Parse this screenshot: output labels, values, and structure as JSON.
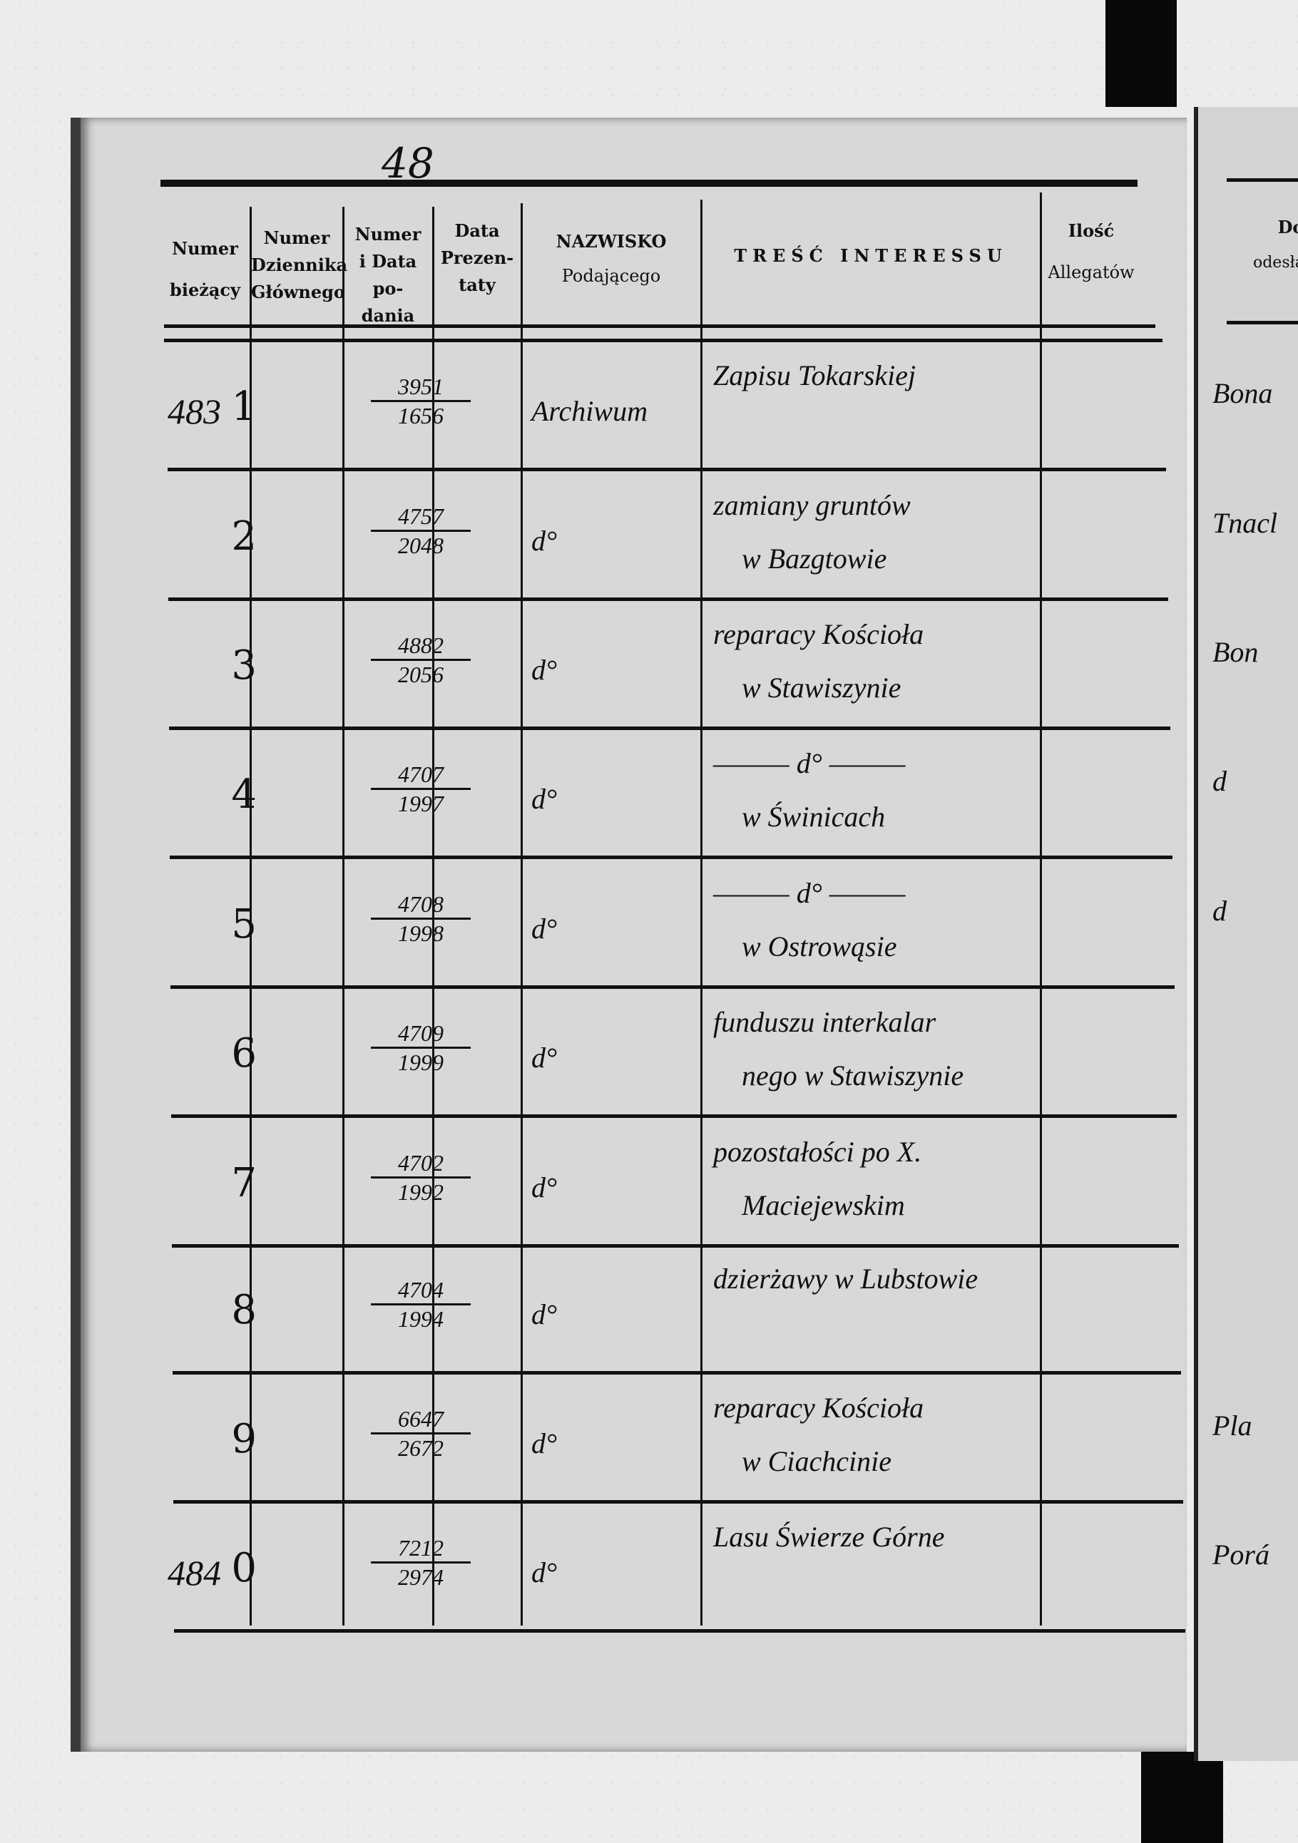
{
  "page_number": "48",
  "headers": {
    "numer_biezacy": [
      "Numer",
      "bieżący"
    ],
    "numer_dziennika": [
      "Numer",
      "Dziennika",
      "Głównego"
    ],
    "numer_data_podania": [
      "Numer",
      "i Data po-",
      "dania"
    ],
    "data_prezentaty": [
      "Data",
      "Prezen-",
      "taty"
    ],
    "nazwisko": [
      "NAZWISKO",
      "Podającego"
    ],
    "tresc": "TREŚĆ INTERESSU",
    "ilosc": [
      "Ilość",
      "Allegatów"
    ],
    "next_page": [
      "Do",
      "odesłan"
    ]
  },
  "rows": [
    {
      "prefix": "483",
      "num": "1",
      "frac_top": "3951",
      "frac_bottom": "1656",
      "name": "Archiwum",
      "content": [
        "Zapisu Tokarskiej",
        ""
      ],
      "next": "Bona"
    },
    {
      "prefix": "",
      "num": "2",
      "frac_top": "4757",
      "frac_bottom": "2048",
      "name": "d°",
      "content": [
        "zamiany gruntów",
        "w Bazgtowie"
      ],
      "next": "Tnacl"
    },
    {
      "prefix": "",
      "num": "3",
      "frac_top": "4882",
      "frac_bottom": "2056",
      "name": "d°",
      "content": [
        "reparacy Kościoła",
        "w Stawiszynie"
      ],
      "next": "Bon"
    },
    {
      "prefix": "",
      "num": "4",
      "frac_top": "4707",
      "frac_bottom": "1997",
      "name": "d°",
      "content": [
        "——— d° ———",
        "w Świnicach"
      ],
      "next": "d"
    },
    {
      "prefix": "",
      "num": "5",
      "frac_top": "4708",
      "frac_bottom": "1998",
      "name": "d°",
      "content": [
        "——— d° ———",
        "w Ostrowąsie"
      ],
      "next": "d"
    },
    {
      "prefix": "",
      "num": "6",
      "frac_top": "4709",
      "frac_bottom": "1999",
      "name": "d°",
      "content": [
        "funduszu interkalar",
        "nego w Stawiszynie"
      ],
      "next": ""
    },
    {
      "prefix": "",
      "num": "7",
      "frac_top": "4702",
      "frac_bottom": "1992",
      "name": "d°",
      "content": [
        "pozostałości po X.",
        "Maciejewskim"
      ],
      "next": ""
    },
    {
      "prefix": "",
      "num": "8",
      "frac_top": "4704",
      "frac_bottom": "1994",
      "name": "d°",
      "content": [
        "dzierżawy w Lubstowie",
        ""
      ],
      "next": ""
    },
    {
      "prefix": "",
      "num": "9",
      "frac_top": "6647",
      "frac_bottom": "2672",
      "name": "d°",
      "content": [
        "reparacy Kościoła",
        "w Ciachcinie"
      ],
      "next": "Pla"
    },
    {
      "prefix": "484",
      "num": "0",
      "frac_top": "7212",
      "frac_bottom": "2974",
      "name": "d°",
      "content": [
        "Lasu Świerze Górne",
        ""
      ],
      "next": "Porá"
    }
  ]
}
